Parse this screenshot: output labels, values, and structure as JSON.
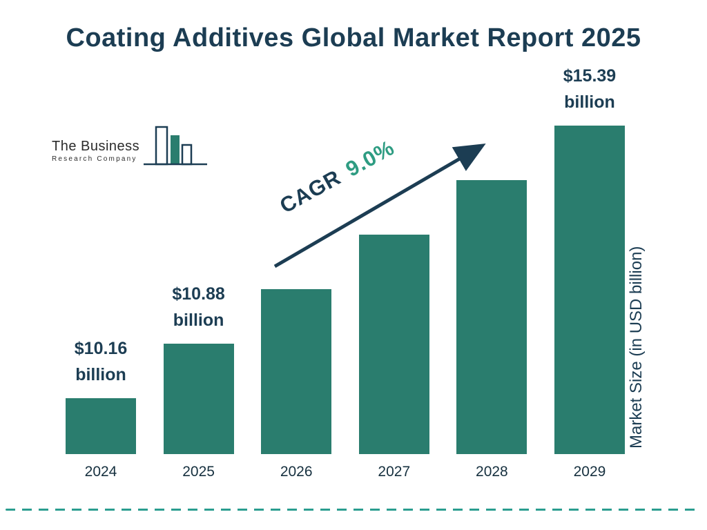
{
  "title": "Coating Additives Global Market Report 2025",
  "logo": {
    "line1": "The Business",
    "line2": "Research Company"
  },
  "cagr": {
    "prefix": "CAGR",
    "value": "9.0%"
  },
  "y_axis_label": "Market Size (in USD billion)",
  "colors": {
    "navy": "#1C3D53",
    "bar": "#2A7D6E",
    "cagr_accent": "#2E9C82",
    "dashed_line": "#2A9D8F"
  },
  "chart_data": {
    "type": "bar",
    "title": "Coating Additives Global Market Report 2025",
    "categories": [
      "2024",
      "2025",
      "2026",
      "2027",
      "2028",
      "2029"
    ],
    "values": [
      10.16,
      10.88,
      11.86,
      12.93,
      14.09,
      15.39
    ],
    "bar_labels": [
      {
        "value": "$10.16",
        "unit": "billion"
      },
      {
        "value": "$10.88",
        "unit": "billion"
      },
      null,
      null,
      null,
      {
        "value": "$15.39",
        "unit": "billion"
      }
    ],
    "xlabel": "",
    "ylabel": "Market Size (in USD billion)",
    "annotation": "CAGR 9.0%",
    "legend": false,
    "grid": false,
    "bar_color": "#2A7D6E"
  }
}
